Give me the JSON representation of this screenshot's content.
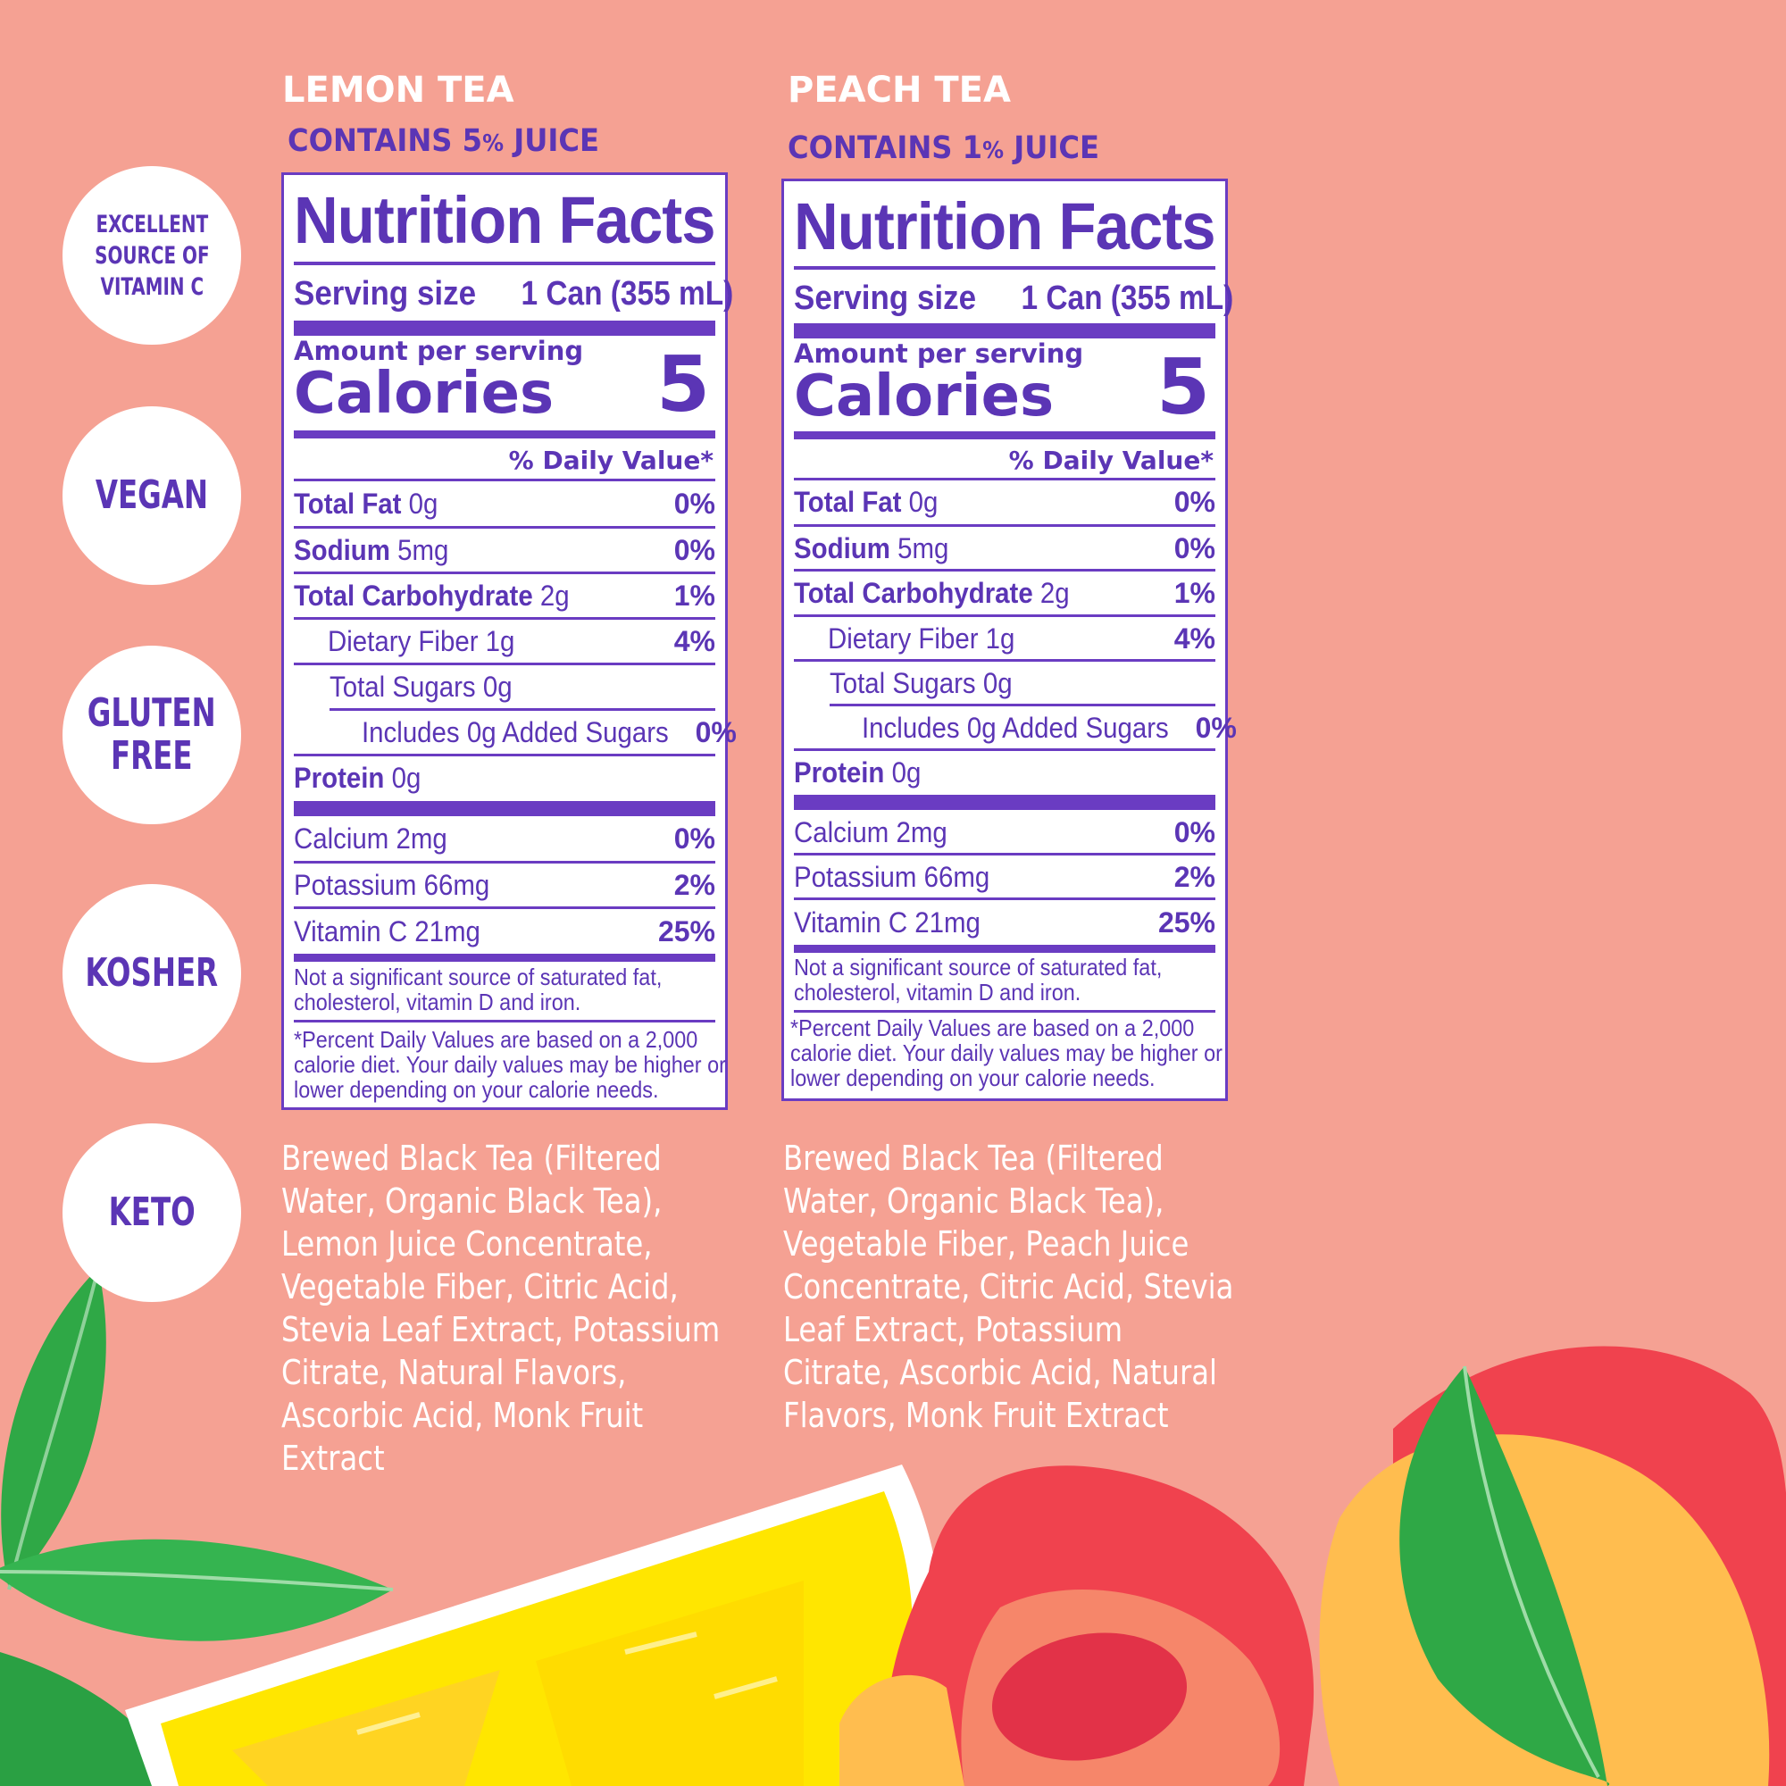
{
  "badges": [
    {
      "lines": [
        "EXCELLENT",
        "SOURCE OF",
        "VITAMIN C"
      ]
    },
    {
      "lines": [
        "VEGAN"
      ]
    },
    {
      "lines": [
        "GLUTEN",
        "FREE"
      ]
    },
    {
      "lines": [
        "KOSHER"
      ]
    },
    {
      "lines": [
        "KETO"
      ]
    }
  ],
  "products": [
    {
      "name": "LEMON TEA",
      "juice_prefix": "CONTAINS 5",
      "juice_pct": "%",
      "juice_suffix": " JUICE",
      "nf_title": "Nutrition Facts",
      "serving_label": "Serving size",
      "serving_value": "1 Can (355 mL)",
      "amount_per_serving": "Amount per serving",
      "calories_label": "Calories",
      "calories_value": "5",
      "daily_value_header": "% Daily Value*",
      "rows": [
        {
          "name": "Total Fat",
          "amount": "0g",
          "dv": "0%"
        },
        {
          "name": "Sodium",
          "amount": "5mg",
          "dv": "0%"
        },
        {
          "name": "Total Carbohydrate",
          "amount": "2g",
          "dv": "1%"
        },
        {
          "name": "Dietary Fiber 1g",
          "amount": "",
          "dv": "4%"
        },
        {
          "name": "Total Sugars 0g",
          "amount": "",
          "dv": ""
        },
        {
          "name": "Includes 0g Added Sugars",
          "amount": "",
          "dv": "0%"
        },
        {
          "name": "Protein",
          "amount": "0g",
          "dv": ""
        }
      ],
      "minerals": [
        {
          "name": "Calcium 2mg",
          "dv": "0%"
        },
        {
          "name": "Potassium 66mg",
          "dv": "2%"
        },
        {
          "name": "Vitamin C 21mg",
          "dv": "25%"
        }
      ],
      "note1": "Not a significant source of saturated fat, cholesterol, vitamin D and iron.",
      "note2": "*Percent Daily Values are based on a 2,000 calorie diet. Your daily values may be higher or lower depending on your calorie needs.",
      "ingredients": "Brewed Black Tea (Filtered Water, Organic Black Tea), Lemon Juice Concentrate, Vegetable Fiber, Citric Acid, Stevia Leaf Extract, Potassium Citrate, Natural Flavors, Ascorbic Acid, Monk Fruit Extract"
    },
    {
      "name": "PEACH TEA",
      "juice_prefix": "CONTAINS 1",
      "juice_pct": "%",
      "juice_suffix": " JUICE",
      "nf_title": "Nutrition Facts",
      "serving_label": "Serving size",
      "serving_value": "1 Can (355 mL)",
      "amount_per_serving": "Amount per serving",
      "calories_label": "Calories",
      "calories_value": "5",
      "daily_value_header": "% Daily Value*",
      "rows": [
        {
          "name": "Total Fat",
          "amount": "0g",
          "dv": "0%"
        },
        {
          "name": "Sodium",
          "amount": "5mg",
          "dv": "0%"
        },
        {
          "name": "Total Carbohydrate",
          "amount": "2g",
          "dv": "1%"
        },
        {
          "name": "Dietary Fiber 1g",
          "amount": "",
          "dv": "4%"
        },
        {
          "name": "Total Sugars 0g",
          "amount": "",
          "dv": ""
        },
        {
          "name": "Includes 0g Added Sugars",
          "amount": "",
          "dv": "0%"
        },
        {
          "name": "Protein",
          "amount": "0g",
          "dv": ""
        }
      ],
      "minerals": [
        {
          "name": "Calcium 2mg",
          "dv": "0%"
        },
        {
          "name": "Potassium 66mg",
          "dv": "2%"
        },
        {
          "name": "Vitamin C 21mg",
          "dv": "25%"
        }
      ],
      "note1": "Not a significant source of saturated fat, cholesterol, vitamin D and iron.",
      "note2": "*Percent Daily Values are based on a 2,000 calorie diet. Your daily values may be higher or lower depending on your calorie needs.",
      "ingredients": "Brewed Black Tea (Filtered Water, Organic Black Tea), Vegetable Fiber, Peach Juice Concentrate, Citric Acid, Stevia Leaf Extract, Potassium Citrate, Ascorbic Acid, Natural Flavors, Monk Fruit Extract"
    }
  ],
  "colors": {
    "background": "#f5a193",
    "brand_purple": "#5b35b5",
    "label_border": "#6a3cc2",
    "lemon_yellow": "#ffe600",
    "peach_red": "#f0424e",
    "peach_orange": "#ffbd4f",
    "leaf_green": "#26b04a"
  }
}
